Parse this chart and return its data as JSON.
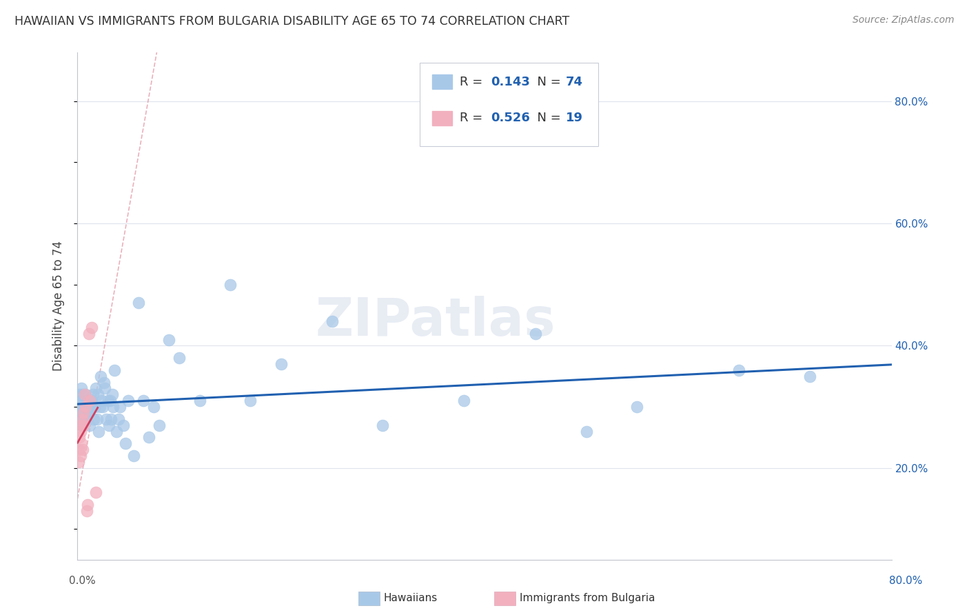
{
  "title": "HAWAIIAN VS IMMIGRANTS FROM BULGARIA DISABILITY AGE 65 TO 74 CORRELATION CHART",
  "source": "Source: ZipAtlas.com",
  "ylabel": "Disability Age 65 to 74",
  "legend_hawaiians": "Hawaiians",
  "legend_bulgaria": "Immigrants from Bulgaria",
  "r_hawaiians": 0.143,
  "n_hawaiians": 74,
  "r_bulgaria": 0.526,
  "n_bulgaria": 19,
  "hawaiians_x": [
    0.001,
    0.002,
    0.002,
    0.003,
    0.003,
    0.003,
    0.004,
    0.004,
    0.005,
    0.005,
    0.005,
    0.006,
    0.006,
    0.007,
    0.007,
    0.007,
    0.008,
    0.008,
    0.009,
    0.009,
    0.01,
    0.01,
    0.011,
    0.012,
    0.013,
    0.013,
    0.014,
    0.015,
    0.016,
    0.017,
    0.018,
    0.019,
    0.02,
    0.021,
    0.022,
    0.023,
    0.024,
    0.025,
    0.026,
    0.027,
    0.028,
    0.03,
    0.031,
    0.032,
    0.033,
    0.034,
    0.035,
    0.036,
    0.038,
    0.04,
    0.042,
    0.045,
    0.047,
    0.05,
    0.055,
    0.06,
    0.065,
    0.07,
    0.075,
    0.08,
    0.09,
    0.1,
    0.12,
    0.15,
    0.17,
    0.2,
    0.25,
    0.3,
    0.38,
    0.45,
    0.5,
    0.55,
    0.65,
    0.72
  ],
  "hawaiians_y": [
    0.3,
    0.32,
    0.29,
    0.31,
    0.3,
    0.28,
    0.33,
    0.27,
    0.32,
    0.3,
    0.28,
    0.31,
    0.29,
    0.31,
    0.3,
    0.28,
    0.3,
    0.32,
    0.29,
    0.31,
    0.29,
    0.31,
    0.3,
    0.27,
    0.31,
    0.3,
    0.31,
    0.32,
    0.28,
    0.3,
    0.33,
    0.28,
    0.32,
    0.26,
    0.3,
    0.35,
    0.31,
    0.3,
    0.34,
    0.33,
    0.28,
    0.31,
    0.27,
    0.31,
    0.28,
    0.32,
    0.3,
    0.36,
    0.26,
    0.28,
    0.3,
    0.27,
    0.24,
    0.31,
    0.22,
    0.47,
    0.31,
    0.25,
    0.3,
    0.27,
    0.41,
    0.38,
    0.31,
    0.5,
    0.31,
    0.37,
    0.44,
    0.27,
    0.31,
    0.42,
    0.26,
    0.3,
    0.36,
    0.35
  ],
  "bulgaria_x": [
    0.001,
    0.002,
    0.002,
    0.003,
    0.003,
    0.004,
    0.004,
    0.005,
    0.005,
    0.006,
    0.006,
    0.007,
    0.008,
    0.009,
    0.01,
    0.011,
    0.012,
    0.014,
    0.018
  ],
  "bulgaria_y": [
    0.21,
    0.23,
    0.25,
    0.22,
    0.26,
    0.24,
    0.27,
    0.23,
    0.28,
    0.29,
    0.27,
    0.32,
    0.3,
    0.13,
    0.14,
    0.42,
    0.31,
    0.43,
    0.16
  ],
  "xmin": 0.0,
  "xmax": 0.8,
  "ymin": 0.05,
  "ymax": 0.88,
  "yticks_right": [
    0.2,
    0.4,
    0.6,
    0.8
  ],
  "dot_color_hawaiians": "#a8c8e8",
  "dot_color_bulgaria": "#f2b0be",
  "line_color_hawaiians": "#2060b0",
  "line_color_bulgaria": "#d04060",
  "ref_line_color": "#e090a0",
  "watermark_text": "ZIPatlas",
  "background_color": "#ffffff",
  "grid_color": "#d8dce8"
}
